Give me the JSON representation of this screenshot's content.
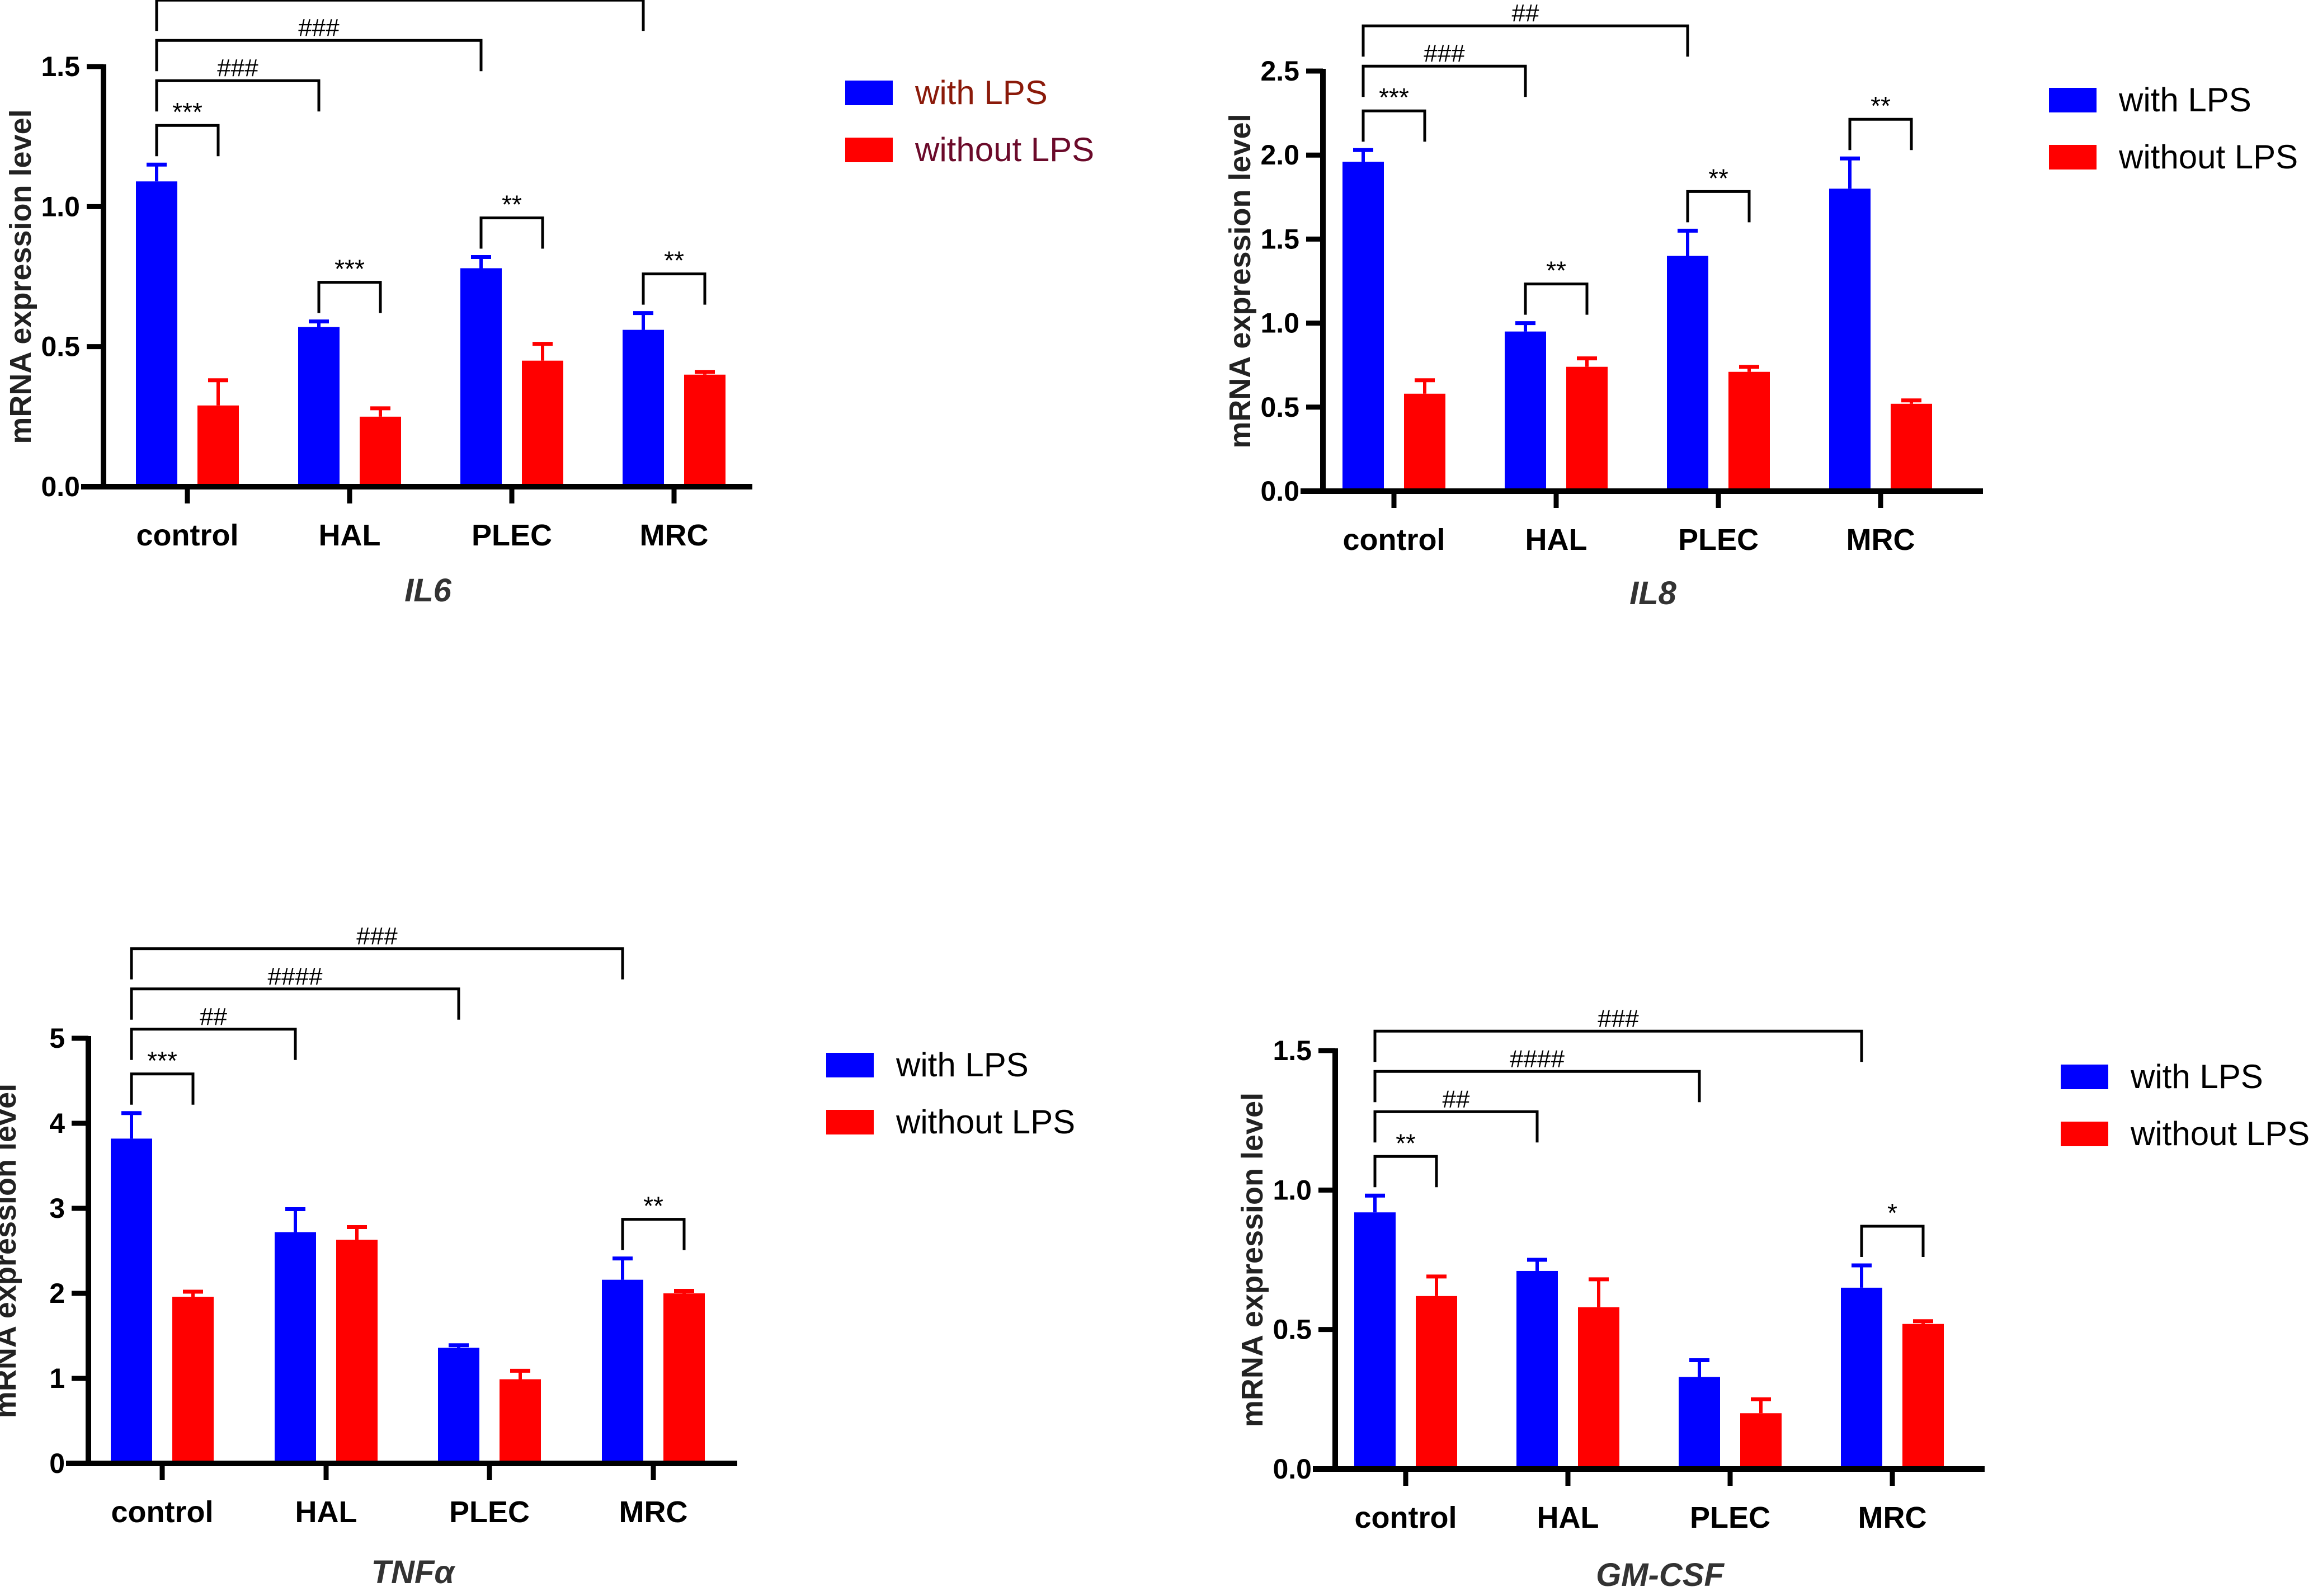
{
  "chart_data": [
    {
      "type": "bar",
      "title": "IL6",
      "ylabel": "mRNA expression level",
      "categories": [
        "control",
        "HAL",
        "PLEC",
        "MRC"
      ],
      "ylim": [
        0,
        1.5
      ],
      "yticks": [
        "0.0",
        "0.5",
        "1.0",
        "1.5"
      ],
      "legend_position": "right",
      "legend_text_colors": [
        "#8B1A0A",
        "#6B0A2A"
      ],
      "series": [
        {
          "name": "with LPS",
          "color": "#0000FF",
          "values": [
            1.09,
            0.57,
            0.78,
            0.56
          ],
          "errors": [
            0.06,
            0.02,
            0.04,
            0.06
          ]
        },
        {
          "name": "without LPS",
          "color": "#FF0000",
          "values": [
            0.29,
            0.25,
            0.45,
            0.4
          ],
          "errors": [
            0.09,
            0.03,
            0.06,
            0.01
          ]
        }
      ],
      "within_annotations": [
        {
          "category": "control",
          "label": "***"
        },
        {
          "category": "HAL",
          "label": "***"
        },
        {
          "category": "PLEC",
          "label": "**"
        },
        {
          "category": "MRC",
          "label": "**"
        }
      ],
      "between_annotations": [
        {
          "from": "control",
          "to": "HAL",
          "label": "###"
        },
        {
          "from": "control",
          "to": "PLEC",
          "label": "###"
        },
        {
          "from": "control",
          "to": "MRC",
          "label": "###"
        }
      ]
    },
    {
      "type": "bar",
      "title": "IL8",
      "ylabel": "mRNA expression level",
      "categories": [
        "control",
        "HAL",
        "PLEC",
        "MRC"
      ],
      "ylim": [
        0,
        2.5
      ],
      "yticks": [
        "0.0",
        "0.5",
        "1.0",
        "1.5",
        "2.0",
        "2.5"
      ],
      "legend_position": "right",
      "legend_text_colors": [
        "#000000",
        "#000000"
      ],
      "series": [
        {
          "name": "with LPS",
          "color": "#0000FF",
          "values": [
            1.96,
            0.95,
            1.4,
            1.8
          ],
          "errors": [
            0.07,
            0.05,
            0.15,
            0.18
          ]
        },
        {
          "name": "without LPS",
          "color": "#FF0000",
          "values": [
            0.58,
            0.74,
            0.71,
            0.52
          ],
          "errors": [
            0.08,
            0.05,
            0.03,
            0.02
          ]
        }
      ],
      "within_annotations": [
        {
          "category": "control",
          "label": "***"
        },
        {
          "category": "HAL",
          "label": "**"
        },
        {
          "category": "PLEC",
          "label": "**"
        },
        {
          "category": "MRC",
          "label": "**"
        }
      ],
      "between_annotations": [
        {
          "from": "control",
          "to": "HAL",
          "label": "###"
        },
        {
          "from": "control",
          "to": "PLEC",
          "label": "##"
        }
      ]
    },
    {
      "type": "bar",
      "title": "TNFα",
      "ylabel": "mRNA expression level",
      "categories": [
        "control",
        "HAL",
        "PLEC",
        "MRC"
      ],
      "ylim": [
        0,
        5
      ],
      "yticks": [
        "0",
        "1",
        "2",
        "3",
        "4",
        "5"
      ],
      "legend_position": "right",
      "legend_text_colors": [
        "#000000",
        "#000000"
      ],
      "series": [
        {
          "name": "with LPS",
          "color": "#0000FF",
          "values": [
            3.82,
            2.72,
            1.36,
            2.16
          ],
          "errors": [
            0.3,
            0.27,
            0.03,
            0.25
          ]
        },
        {
          "name": "without LPS",
          "color": "#FF0000",
          "values": [
            1.96,
            2.63,
            0.99,
            2.0
          ],
          "errors": [
            0.06,
            0.15,
            0.1,
            0.03
          ]
        }
      ],
      "within_annotations": [
        {
          "category": "control",
          "label": "***"
        },
        {
          "category": "MRC",
          "label": "**"
        }
      ],
      "between_annotations": [
        {
          "from": "control",
          "to": "HAL",
          "label": "##"
        },
        {
          "from": "control",
          "to": "PLEC",
          "label": "####"
        },
        {
          "from": "control",
          "to": "MRC",
          "label": "###"
        }
      ]
    },
    {
      "type": "bar",
      "title": "GM-CSF",
      "ylabel": "mRNA expression level",
      "categories": [
        "control",
        "HAL",
        "PLEC",
        "MRC"
      ],
      "ylim": [
        0,
        1.5
      ],
      "yticks": [
        "0.0",
        "0.5",
        "1.0",
        "1.5"
      ],
      "legend_position": "right",
      "legend_text_colors": [
        "#000000",
        "#000000"
      ],
      "series": [
        {
          "name": "with LPS",
          "color": "#0000FF",
          "values": [
            0.92,
            0.71,
            0.33,
            0.65
          ],
          "errors": [
            0.06,
            0.04,
            0.06,
            0.08
          ]
        },
        {
          "name": "without LPS",
          "color": "#FF0000",
          "values": [
            0.62,
            0.58,
            0.2,
            0.52
          ],
          "errors": [
            0.07,
            0.1,
            0.05,
            0.01
          ]
        }
      ],
      "within_annotations": [
        {
          "category": "control",
          "label": "**"
        },
        {
          "category": "MRC",
          "label": "*"
        }
      ],
      "between_annotations": [
        {
          "from": "control",
          "to": "HAL",
          "label": "##"
        },
        {
          "from": "control",
          "to": "PLEC",
          "label": "####"
        },
        {
          "from": "control",
          "to": "MRC",
          "label": "###"
        }
      ]
    }
  ]
}
